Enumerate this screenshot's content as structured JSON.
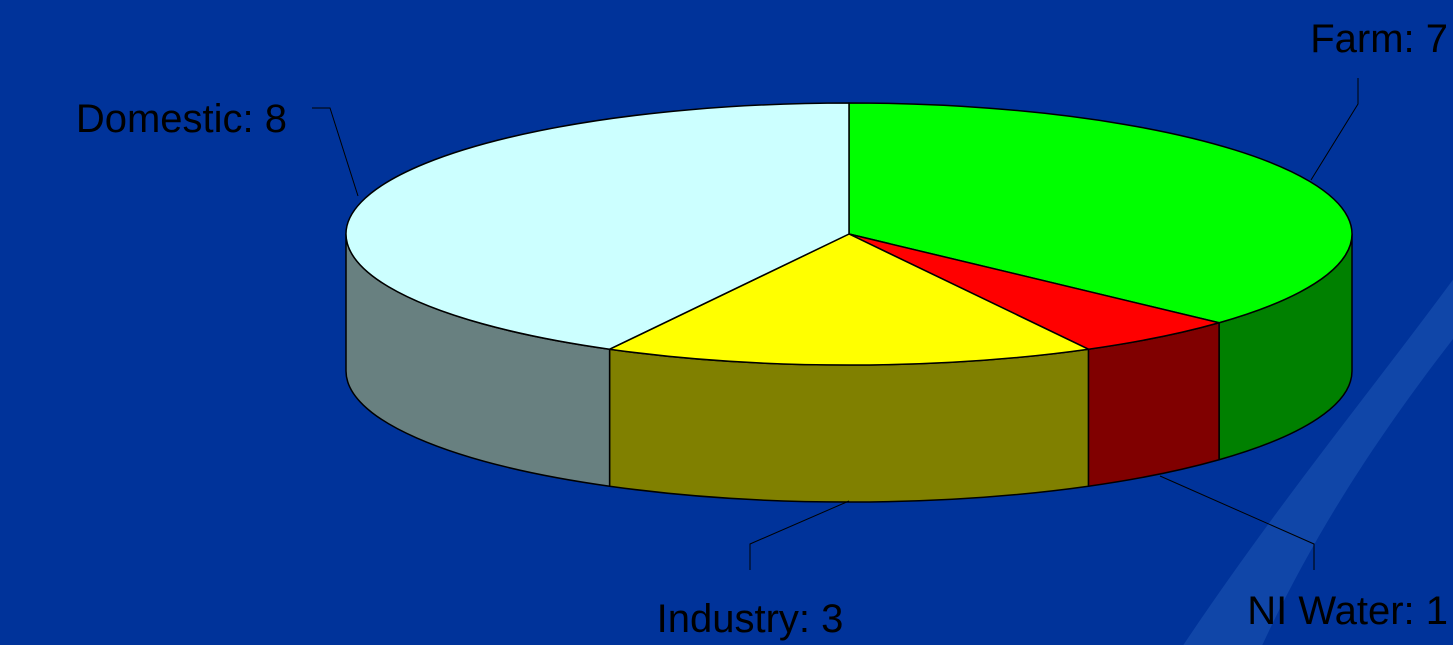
{
  "chart_data": {
    "type": "pie",
    "style": "3d",
    "categories": [
      "Farm",
      "NI Water",
      "Industry",
      "Domestic"
    ],
    "values": [
      7,
      1,
      3,
      8
    ],
    "labels": [
      "Farm: 7",
      "NI Water: 1",
      "Industry: 3",
      "Domestic: 8"
    ],
    "colors": [
      "#00ff00",
      "#ff0000",
      "#ffff00",
      "#ccffff"
    ],
    "side_colors": [
      "#008000",
      "#800000",
      "#808000",
      "#688080"
    ],
    "start": "12 o'clock",
    "direction": "clockwise",
    "legend": "none",
    "data_labels": "outside with leader lines"
  },
  "colors": {
    "background": "#00339a",
    "background_accent": "#1e56b4",
    "outline": "#000000"
  }
}
